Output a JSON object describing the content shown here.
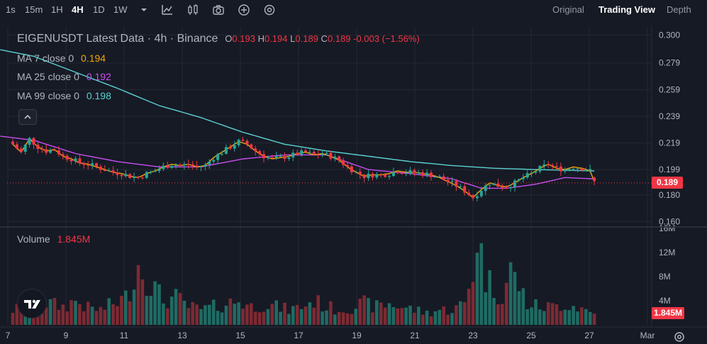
{
  "toolbar": {
    "intervals": [
      "1s",
      "15m",
      "1H",
      "4H",
      "1D",
      "1W"
    ],
    "active_interval": "4H",
    "icons": [
      "chevron-down-icon",
      "indicators-icon",
      "candle-type-icon",
      "camera-icon",
      "add-icon",
      "settings-icon"
    ],
    "views": [
      "Original",
      "Trading View",
      "Depth"
    ],
    "active_view": "Trading View"
  },
  "legend": {
    "symbol_line": "EIGENUSDT Latest Data · 4h · Binance",
    "ohlc": {
      "o": "0.193",
      "h": "0.194",
      "l": "0.189",
      "c": "0.189",
      "chg": "-0.003 (−1.56%)"
    },
    "ma7": {
      "label": "MA 7 close 0",
      "value": "0.194",
      "color": "#f0a70a"
    },
    "ma25": {
      "label": "MA 25 close 0",
      "value": "0.192",
      "color": "#c84ef0"
    },
    "ma99": {
      "label": "MA 99 close 0",
      "value": "0.198",
      "color": "#5ad2d2"
    },
    "volume_label": "Volume",
    "volume_value": "1.845M"
  },
  "colors": {
    "up": "#26a69a",
    "down": "#f23645",
    "bg": "#161a25",
    "grid": "#242833",
    "text": "#b2b5be"
  },
  "chart_data": {
    "type": "candlestick",
    "price_axis": {
      "ticks": [
        "0.300",
        "0.279",
        "0.259",
        "0.239",
        "0.219",
        "0.199",
        "0.180",
        "0.160"
      ],
      "range": [
        0.157,
        0.306
      ]
    },
    "last_price": "0.189",
    "volume_axis": {
      "ticks": [
        "16M",
        "12M",
        "8M",
        "4M"
      ],
      "range": [
        0,
        16
      ]
    },
    "last_volume": "1.845M",
    "x_axis": {
      "labels": [
        "7",
        "9",
        "11",
        "13",
        "15",
        "17",
        "19",
        "21",
        "23",
        "25",
        "27",
        "Mar"
      ]
    },
    "close_anchors": [
      [
        0,
        0.218
      ],
      [
        2,
        0.212
      ],
      [
        4,
        0.222
      ],
      [
        6,
        0.216
      ],
      [
        8,
        0.213
      ],
      [
        10,
        0.214
      ],
      [
        12,
        0.209
      ],
      [
        14,
        0.207
      ],
      [
        16,
        0.204
      ],
      [
        18,
        0.203
      ],
      [
        20,
        0.201
      ],
      [
        22,
        0.199
      ],
      [
        24,
        0.197
      ],
      [
        26,
        0.196
      ],
      [
        28,
        0.194
      ],
      [
        30,
        0.193
      ],
      [
        32,
        0.196
      ],
      [
        34,
        0.198
      ],
      [
        36,
        0.201
      ],
      [
        38,
        0.203
      ],
      [
        40,
        0.202
      ],
      [
        42,
        0.203
      ],
      [
        44,
        0.201
      ],
      [
        46,
        0.202
      ],
      [
        48,
        0.208
      ],
      [
        50,
        0.212
      ],
      [
        52,
        0.216
      ],
      [
        54,
        0.22
      ],
      [
        56,
        0.218
      ],
      [
        58,
        0.213
      ],
      [
        60,
        0.209
      ],
      [
        62,
        0.207
      ],
      [
        64,
        0.208
      ],
      [
        66,
        0.209
      ],
      [
        68,
        0.211
      ],
      [
        70,
        0.212
      ],
      [
        72,
        0.21
      ],
      [
        74,
        0.211
      ],
      [
        76,
        0.209
      ],
      [
        78,
        0.206
      ],
      [
        80,
        0.201
      ],
      [
        82,
        0.197
      ],
      [
        84,
        0.194
      ],
      [
        86,
        0.195
      ],
      [
        88,
        0.195
      ],
      [
        90,
        0.196
      ],
      [
        92,
        0.198
      ],
      [
        94,
        0.197
      ],
      [
        96,
        0.197
      ],
      [
        98,
        0.196
      ],
      [
        100,
        0.195
      ],
      [
        102,
        0.193
      ],
      [
        104,
        0.19
      ],
      [
        106,
        0.187
      ],
      [
        108,
        0.183
      ],
      [
        110,
        0.178
      ],
      [
        112,
        0.184
      ],
      [
        114,
        0.189
      ],
      [
        116,
        0.187
      ],
      [
        118,
        0.186
      ],
      [
        120,
        0.189
      ],
      [
        122,
        0.193
      ],
      [
        124,
        0.196
      ],
      [
        126,
        0.2
      ],
      [
        128,
        0.203
      ],
      [
        130,
        0.2
      ],
      [
        132,
        0.199
      ],
      [
        134,
        0.201
      ],
      [
        136,
        0.2
      ],
      [
        138,
        0.198
      ],
      [
        139,
        0.19
      ]
    ],
    "volume_anchors": [
      [
        0,
        2.5
      ],
      [
        3,
        3.0
      ],
      [
        6,
        4.0
      ],
      [
        9,
        3.5
      ],
      [
        12,
        3.0
      ],
      [
        15,
        4.0
      ],
      [
        18,
        2.8
      ],
      [
        21,
        2.5
      ],
      [
        24,
        3.5
      ],
      [
        27,
        4.5
      ],
      [
        30,
        10.0
      ],
      [
        33,
        7.0
      ],
      [
        36,
        4.0
      ],
      [
        39,
        4.5
      ],
      [
        42,
        3.0
      ],
      [
        45,
        2.5
      ],
      [
        48,
        3.0
      ],
      [
        51,
        3.5
      ],
      [
        54,
        4.0
      ],
      [
        57,
        3.0
      ],
      [
        60,
        3.5
      ],
      [
        63,
        3.0
      ],
      [
        66,
        2.5
      ],
      [
        69,
        3.0
      ],
      [
        72,
        4.0
      ],
      [
        75,
        3.0
      ],
      [
        78,
        2.5
      ],
      [
        81,
        3.0
      ],
      [
        84,
        3.5
      ],
      [
        87,
        3.0
      ],
      [
        90,
        3.5
      ],
      [
        93,
        3.0
      ],
      [
        96,
        2.5
      ],
      [
        99,
        2.0
      ],
      [
        102,
        2.5
      ],
      [
        105,
        2.5
      ],
      [
        108,
        3.5
      ],
      [
        110,
        9.0
      ],
      [
        111,
        15.0
      ],
      [
        113,
        8.0
      ],
      [
        115,
        6.0
      ],
      [
        117,
        5.0
      ],
      [
        119,
        9.0
      ],
      [
        121,
        6.5
      ],
      [
        123,
        3.5
      ],
      [
        126,
        3.0
      ],
      [
        129,
        3.0
      ],
      [
        132,
        3.5
      ],
      [
        135,
        3.0
      ],
      [
        139,
        1.845
      ]
    ],
    "ma99_anchors": [
      [
        -8,
        0.292
      ],
      [
        5,
        0.284
      ],
      [
        15,
        0.272
      ],
      [
        25,
        0.26
      ],
      [
        35,
        0.247
      ],
      [
        45,
        0.238
      ],
      [
        55,
        0.227
      ],
      [
        65,
        0.218
      ],
      [
        75,
        0.213
      ],
      [
        85,
        0.209
      ],
      [
        95,
        0.205
      ],
      [
        105,
        0.202
      ],
      [
        115,
        0.2
      ],
      [
        125,
        0.199
      ],
      [
        139,
        0.198
      ]
    ],
    "ma25_anchors": [
      [
        -8,
        0.226
      ],
      [
        5,
        0.221
      ],
      [
        15,
        0.211
      ],
      [
        25,
        0.205
      ],
      [
        35,
        0.201
      ],
      [
        45,
        0.201
      ],
      [
        55,
        0.207
      ],
      [
        65,
        0.21
      ],
      [
        75,
        0.21
      ],
      [
        85,
        0.199
      ],
      [
        95,
        0.196
      ],
      [
        105,
        0.192
      ],
      [
        112,
        0.185
      ],
      [
        118,
        0.185
      ],
      [
        125,
        0.188
      ],
      [
        132,
        0.193
      ],
      [
        139,
        0.192
      ]
    ]
  }
}
